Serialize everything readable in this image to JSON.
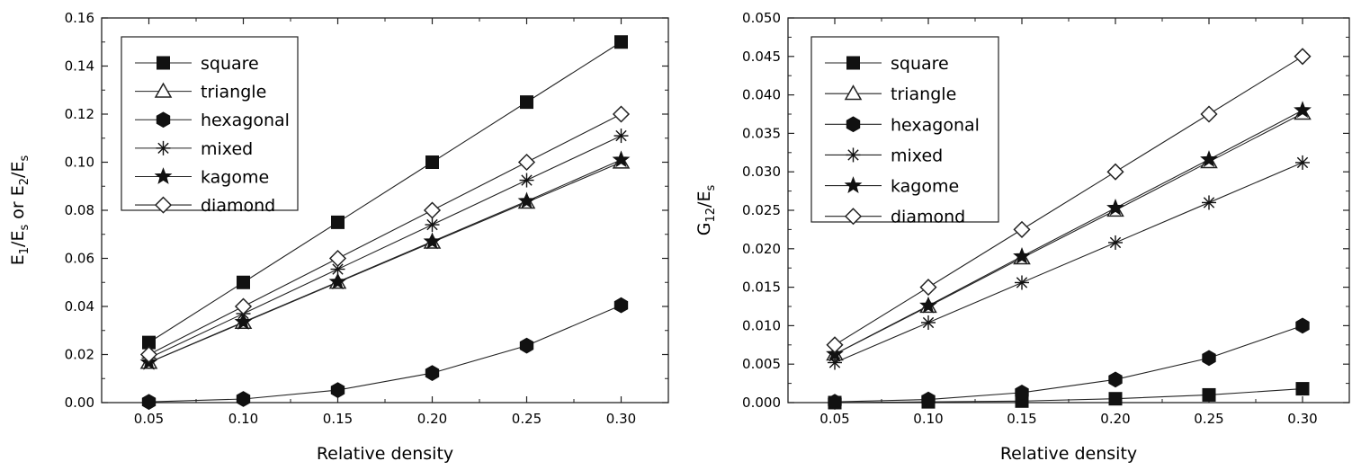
{
  "chart_data": [
    {
      "type": "line",
      "xlabel": "Relative density",
      "ylabel": {
        "main": "E",
        "sub1": "1",
        "mid": "/E",
        "sub2": "s",
        "mid2": " or E",
        "sub3": "2",
        "mid3": "/E",
        "sub4": "s"
      },
      "xlim": [
        0.025,
        0.325
      ],
      "ylim": [
        0,
        0.16
      ],
      "x_ticks": [
        "0.05",
        "0.10",
        "0.15",
        "0.20",
        "0.25",
        "0.30"
      ],
      "y_ticks": [
        "0.00",
        "0.02",
        "0.04",
        "0.06",
        "0.08",
        "0.10",
        "0.12",
        "0.14",
        "0.16"
      ],
      "legend_position": "top-left",
      "x": [
        0.05,
        0.1,
        0.15,
        0.2,
        0.25,
        0.3
      ],
      "series": [
        {
          "name": "square",
          "marker": "square-filled",
          "values": [
            0.025,
            0.05,
            0.075,
            0.1,
            0.125,
            0.15
          ]
        },
        {
          "name": "triangle",
          "marker": "triangle-open",
          "values": [
            0.0167,
            0.0333,
            0.05,
            0.0667,
            0.0833,
            0.1
          ]
        },
        {
          "name": "hexagonal",
          "marker": "hexagon-filled",
          "values": [
            0.0003,
            0.0015,
            0.0052,
            0.0123,
            0.0237,
            0.0405
          ]
        },
        {
          "name": "mixed",
          "marker": "asterisk",
          "values": [
            0.0185,
            0.037,
            0.0555,
            0.074,
            0.0925,
            0.111
          ]
        },
        {
          "name": "kagome",
          "marker": "star-filled",
          "values": [
            0.0167,
            0.0335,
            0.0502,
            0.067,
            0.0838,
            0.101
          ]
        },
        {
          "name": "diamond",
          "marker": "diamond-open",
          "values": [
            0.02,
            0.04,
            0.06,
            0.08,
            0.1,
            0.12
          ]
        }
      ]
    },
    {
      "type": "line",
      "xlabel": "Relative density",
      "ylabel": {
        "main": "G",
        "sub1": "12",
        "mid": "/E",
        "sub2": "s"
      },
      "xlim": [
        0.025,
        0.325
      ],
      "ylim": [
        0,
        0.05
      ],
      "x_ticks": [
        "0.05",
        "0.10",
        "0.15",
        "0.20",
        "0.25",
        "0.30"
      ],
      "y_ticks": [
        "0.000",
        "0.005",
        "0.010",
        "0.015",
        "0.020",
        "0.025",
        "0.030",
        "0.035",
        "0.040",
        "0.045",
        "0.050"
      ],
      "legend_position": "top-left",
      "x": [
        0.05,
        0.1,
        0.15,
        0.2,
        0.25,
        0.3
      ],
      "series": [
        {
          "name": "square",
          "marker": "square-filled",
          "values": [
            0.0,
            0.0001,
            0.0002,
            0.0005,
            0.001,
            0.0018
          ]
        },
        {
          "name": "triangle",
          "marker": "triangle-open",
          "values": [
            0.0063,
            0.0125,
            0.0188,
            0.025,
            0.0313,
            0.0376
          ]
        },
        {
          "name": "hexagonal",
          "marker": "hexagon-filled",
          "values": [
            0.0001,
            0.0004,
            0.0013,
            0.003,
            0.0058,
            0.01
          ]
        },
        {
          "name": "mixed",
          "marker": "asterisk",
          "values": [
            0.0052,
            0.0104,
            0.0156,
            0.0208,
            0.026,
            0.0312
          ]
        },
        {
          "name": "kagome",
          "marker": "star-filled",
          "values": [
            0.0063,
            0.0126,
            0.019,
            0.0253,
            0.0316,
            0.038
          ]
        },
        {
          "name": "diamond",
          "marker": "diamond-open",
          "values": [
            0.0075,
            0.015,
            0.0225,
            0.03,
            0.0375,
            0.045
          ]
        }
      ]
    }
  ]
}
